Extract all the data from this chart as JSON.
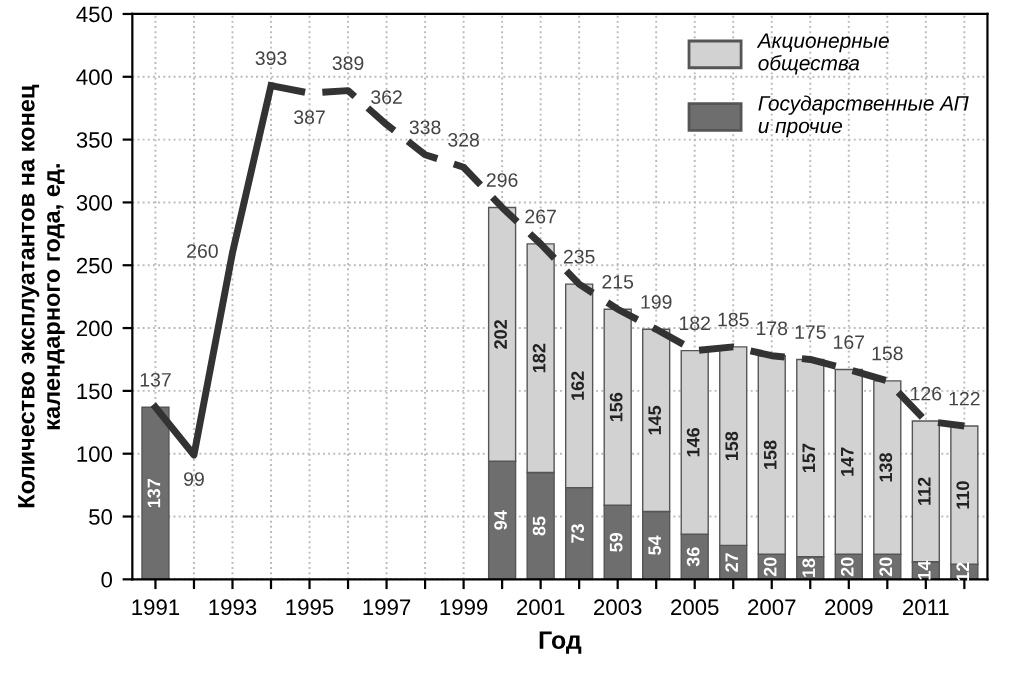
{
  "chart_data": {
    "type": "bar",
    "stacked": true,
    "xlabel": "Год",
    "ylabel": "Количество эксплуатантов на конец\nкалендарного года, ед.",
    "categories": [
      "1991",
      null,
      "1993",
      null,
      "1995",
      null,
      "1997",
      null,
      "1999",
      null,
      "2001",
      null,
      "2003",
      null,
      "2005",
      null,
      "2007",
      null,
      "2009",
      null,
      "2011",
      null
    ],
    "series": [
      {
        "name": "Государственные АП\nи прочие",
        "color": "#6e6e6e",
        "values": [
          137,
          null,
          null,
          null,
          null,
          null,
          null,
          null,
          null,
          94,
          85,
          73,
          59,
          54,
          36,
          27,
          20,
          18,
          20,
          20,
          14,
          12
        ]
      },
      {
        "name": "Акционерные\nобщества",
        "color": "#d2d2d2",
        "values": [
          null,
          null,
          null,
          null,
          null,
          null,
          null,
          null,
          null,
          202,
          182,
          162,
          156,
          145,
          146,
          158,
          158,
          157,
          147,
          138,
          112,
          110
        ]
      },
      {
        "type": "line",
        "line_style": "solid",
        "color": "#333333",
        "value_labels": [
          "137",
          "99",
          "260",
          null,
          null,
          null,
          null,
          null,
          null,
          null,
          null,
          null,
          null,
          null,
          null,
          null,
          null,
          null,
          null,
          null,
          null,
          null
        ],
        "values": [
          137,
          99,
          260,
          393,
          null,
          null,
          null,
          null,
          null,
          null,
          null,
          null,
          null,
          null,
          null,
          null,
          null,
          null,
          null,
          null,
          null,
          null
        ]
      },
      {
        "type": "line",
        "line_style": "dashed",
        "color": "#333333",
        "values": [
          null,
          null,
          null,
          393,
          387,
          389,
          362,
          338,
          328,
          296,
          267,
          235,
          215,
          199,
          182,
          185,
          178,
          175,
          167,
          158,
          126,
          122
        ]
      }
    ],
    "data_labels": true,
    "ylim": [
      0,
      450
    ],
    "yticks": [
      0,
      50,
      100,
      150,
      200,
      250,
      300,
      350,
      400,
      450
    ],
    "grid": true,
    "legend": "top right"
  }
}
